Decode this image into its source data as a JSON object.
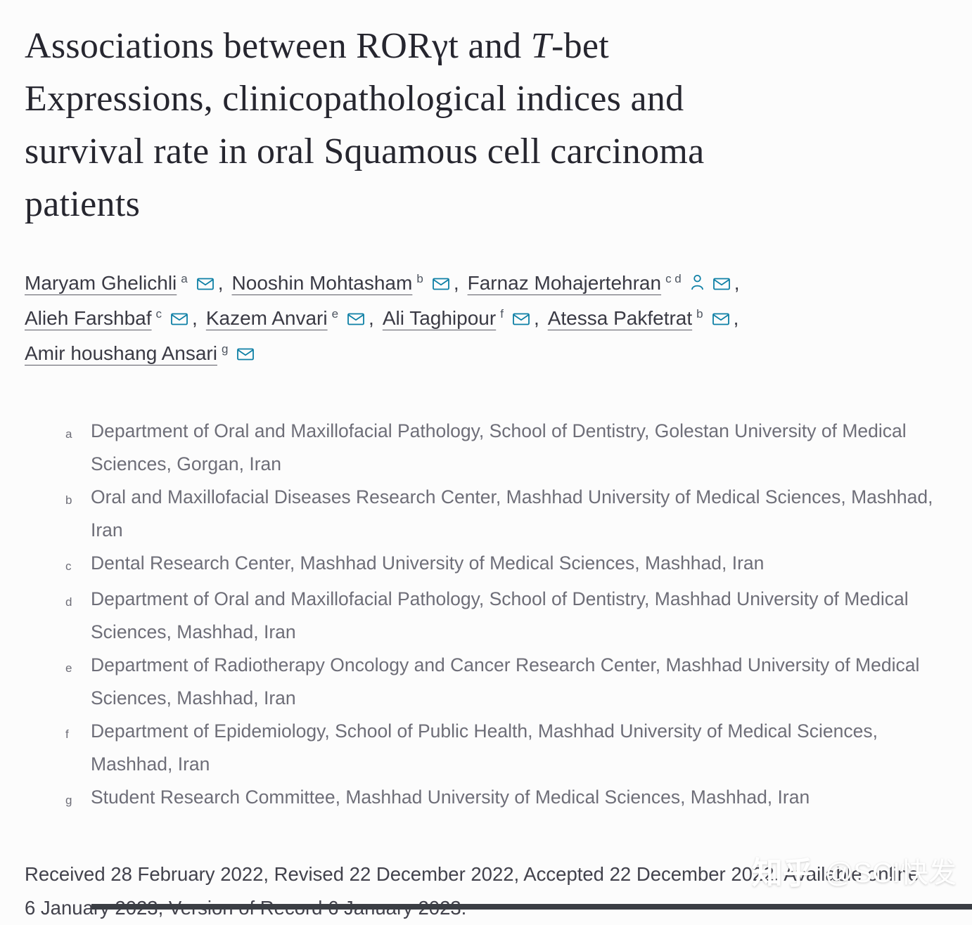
{
  "page": {
    "background": "#fcfcfc",
    "accent_teal": "#0d7fa5"
  },
  "title": {
    "line1_pre": "Associations between RORγt and ",
    "line1_italic": "T",
    "line1_post": "-bet",
    "line2": "Expressions, clinicopathological indices and",
    "line3": "survival rate in oral Squamous cell carcinoma",
    "line4": "patients"
  },
  "icons": {
    "email": "email-icon (teal envelope)",
    "person": "person-icon (corresponding author profile)"
  },
  "author_lines": [
    [
      {
        "name": "Maryam Ghelichli",
        "sup": "a",
        "person": false
      },
      {
        "name": "Nooshin Mohtasham",
        "sup": "b",
        "person": false
      },
      {
        "name": "Farnaz Mohajertehran",
        "sup": "c d",
        "person": true
      }
    ],
    [
      {
        "name": "Alieh Farshbaf",
        "sup": "c",
        "person": false
      },
      {
        "name": "Kazem Anvari",
        "sup": "e",
        "person": false
      },
      {
        "name": "Ali Taghipour",
        "sup": "f",
        "person": false
      },
      {
        "name": "Atessa Pakfetrat",
        "sup": "b",
        "person": false
      }
    ],
    [
      {
        "name": "Amir houshang Ansari",
        "sup": "g",
        "person": false
      }
    ]
  ],
  "affiliations": [
    {
      "sup": "a",
      "text": "Department of Oral and Maxillofacial Pathology, School of Dentistry, Golestan University of Medical Sciences, Gorgan, Iran"
    },
    {
      "sup": "b",
      "text": "Oral and Maxillofacial Diseases Research Center, Mashhad University of Medical Sciences, Mashhad, Iran"
    },
    {
      "sup": "c",
      "text": "Dental Research Center, Mashhad University of Medical Sciences, Mashhad, Iran"
    },
    {
      "sup": "d",
      "text": "Department of Oral and Maxillofacial Pathology, School of Dentistry, Mashhad University of Medical Sciences, Mashhad, Iran"
    },
    {
      "sup": "e",
      "text": "Department of Radiotherapy Oncology and Cancer Research Center, Mashhad University of Medical Sciences, Mashhad, Iran"
    },
    {
      "sup": "f",
      "text": "Department of Epidemiology, School of Public Health, Mashhad University of Medical Sciences, Mashhad, Iran"
    },
    {
      "sup": "g",
      "text": "Student Research Committee, Mashhad University of Medical Sciences, Mashhad, Iran"
    }
  ],
  "dates": "Received 28 February 2022, Revised 22 December 2022, Accepted 22 December 2022, Available online 6 January 2023, Version of Record 6 January 2023.",
  "watermark": {
    "brand": "知乎",
    "handle": "@SCI快发"
  }
}
